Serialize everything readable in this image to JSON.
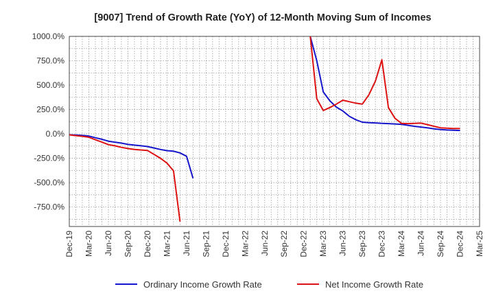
{
  "chart_data": {
    "type": "line",
    "title": "[9007]  Trend of Growth Rate (YoY) of 12-Month Moving Sum of Incomes",
    "xlabel": "",
    "ylabel": "",
    "ylim": [
      -950,
      1000
    ],
    "y_ticks": [
      "1000.0%",
      "750.0%",
      "500.0%",
      "250.0%",
      "0.0%",
      "-250.0%",
      "-500.0%",
      "-750.0%"
    ],
    "x_ticks": [
      "Dec-19",
      "Mar-20",
      "Jun-20",
      "Sep-20",
      "Dec-20",
      "Mar-21",
      "Jun-21",
      "Sep-21",
      "Dec-21",
      "Mar-22",
      "Jun-22",
      "Sep-22",
      "Dec-22",
      "Mar-23",
      "Jun-23",
      "Sep-23",
      "Dec-23",
      "Mar-24",
      "Jun-24",
      "Sep-24",
      "Dec-24",
      "Mar-25"
    ],
    "grid": true,
    "legend_position": "bottom",
    "series": [
      {
        "name": "Ordinary Income Growth Rate",
        "color": "#1515cc",
        "points": [
          [
            "2019-12",
            -10
          ],
          [
            "2020-01",
            -12
          ],
          [
            "2020-02",
            -15
          ],
          [
            "2020-03",
            -22
          ],
          [
            "2020-04",
            -40
          ],
          [
            "2020-05",
            -55
          ],
          [
            "2020-06",
            -75
          ],
          [
            "2020-07",
            -85
          ],
          [
            "2020-08",
            -95
          ],
          [
            "2020-09",
            -108
          ],
          [
            "2020-10",
            -115
          ],
          [
            "2020-11",
            -122
          ],
          [
            "2020-12",
            -130
          ],
          [
            "2021-01",
            -145
          ],
          [
            "2021-02",
            -160
          ],
          [
            "2021-03",
            -172
          ],
          [
            "2021-04",
            -178
          ],
          [
            "2021-05",
            -195
          ],
          [
            "2021-06",
            -230
          ],
          [
            "2021-07",
            -455
          ],
          [
            "2023-01",
            1000
          ],
          [
            "2023-02",
            750
          ],
          [
            "2023-03",
            430
          ],
          [
            "2023-04",
            340
          ],
          [
            "2023-05",
            275
          ],
          [
            "2023-06",
            235
          ],
          [
            "2023-07",
            180
          ],
          [
            "2023-08",
            145
          ],
          [
            "2023-09",
            120
          ],
          [
            "2023-10",
            115
          ],
          [
            "2023-11",
            112
          ],
          [
            "2023-12",
            108
          ],
          [
            "2024-01",
            105
          ],
          [
            "2024-02",
            102
          ],
          [
            "2024-03",
            98
          ],
          [
            "2024-04",
            88
          ],
          [
            "2024-05",
            78
          ],
          [
            "2024-06",
            70
          ],
          [
            "2024-07",
            62
          ],
          [
            "2024-08",
            52
          ],
          [
            "2024-09",
            45
          ],
          [
            "2024-10",
            40
          ],
          [
            "2024-11",
            38
          ],
          [
            "2024-12",
            35
          ]
        ]
      },
      {
        "name": "Net Income Growth Rate",
        "color": "#dd1111",
        "points": [
          [
            "2019-12",
            -10
          ],
          [
            "2020-01",
            -18
          ],
          [
            "2020-02",
            -25
          ],
          [
            "2020-03",
            -35
          ],
          [
            "2020-04",
            -60
          ],
          [
            "2020-05",
            -85
          ],
          [
            "2020-06",
            -110
          ],
          [
            "2020-07",
            -122
          ],
          [
            "2020-08",
            -138
          ],
          [
            "2020-09",
            -150
          ],
          [
            "2020-10",
            -160
          ],
          [
            "2020-11",
            -165
          ],
          [
            "2020-12",
            -170
          ],
          [
            "2021-01",
            -210
          ],
          [
            "2021-02",
            -250
          ],
          [
            "2021-03",
            -300
          ],
          [
            "2021-04",
            -380
          ],
          [
            "2021-05",
            -900
          ],
          [
            "2023-01",
            1000
          ],
          [
            "2023-02",
            360
          ],
          [
            "2023-03",
            240
          ],
          [
            "2023-04",
            270
          ],
          [
            "2023-05",
            305
          ],
          [
            "2023-06",
            345
          ],
          [
            "2023-07",
            330
          ],
          [
            "2023-08",
            315
          ],
          [
            "2023-09",
            305
          ],
          [
            "2023-10",
            400
          ],
          [
            "2023-11",
            540
          ],
          [
            "2023-12",
            760
          ],
          [
            "2024-01",
            270
          ],
          [
            "2024-02",
            160
          ],
          [
            "2024-03",
            108
          ],
          [
            "2024-04",
            105
          ],
          [
            "2024-05",
            108
          ],
          [
            "2024-06",
            110
          ],
          [
            "2024-07",
            95
          ],
          [
            "2024-08",
            78
          ],
          [
            "2024-09",
            62
          ],
          [
            "2024-10",
            58
          ],
          [
            "2024-11",
            55
          ],
          [
            "2024-12",
            55
          ]
        ]
      }
    ]
  }
}
